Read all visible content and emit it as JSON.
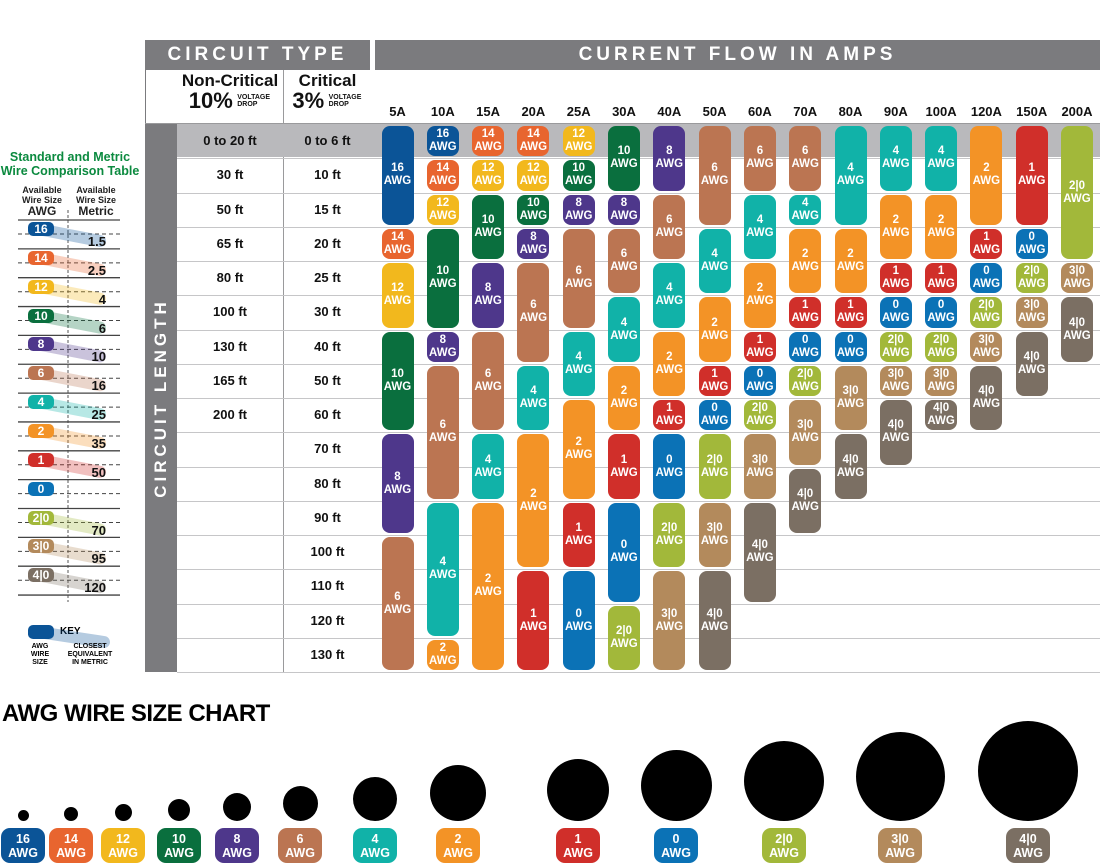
{
  "header": {
    "circuit_type": "CIRCUIT TYPE",
    "current_flow": "CURRENT FLOW IN AMPS",
    "side_label": "CIRCUIT LENGTH"
  },
  "circuit_types": [
    {
      "name": "Non-Critical",
      "pct": "10%",
      "drop": "VOLTAGE DROP"
    },
    {
      "name": "Critical",
      "pct": "3%",
      "drop": "VOLTAGE DROP"
    }
  ],
  "awg_suffix": "AWG",
  "gauge_colors": {
    "16": "#0b5497",
    "14": "#e8652f",
    "12": "#f2b81d",
    "10": "#0a6f3e",
    "8": "#4e378b",
    "6": "#bb7552",
    "4": "#11b2a8",
    "2": "#f39326",
    "1": "#d02f2a",
    "0": "#0b72b6",
    "2|0": "#a2b83a",
    "3|0": "#b38a5c",
    "4|0": "#7b6f63"
  },
  "lengths": [
    {
      "noncritical": "0 to 20 ft",
      "critical": "0 to 6 ft"
    },
    {
      "noncritical": "30 ft",
      "critical": "10 ft"
    },
    {
      "noncritical": "50 ft",
      "critical": "15 ft"
    },
    {
      "noncritical": "65 ft",
      "critical": "20 ft"
    },
    {
      "noncritical": "80 ft",
      "critical": "25 ft"
    },
    {
      "noncritical": "100 ft",
      "critical": "30 ft"
    },
    {
      "noncritical": "130 ft",
      "critical": "40 ft"
    },
    {
      "noncritical": "165 ft",
      "critical": "50 ft"
    },
    {
      "noncritical": "200 ft",
      "critical": "60 ft"
    },
    {
      "noncritical": "",
      "critical": "70 ft"
    },
    {
      "noncritical": "",
      "critical": "80 ft"
    },
    {
      "noncritical": "",
      "critical": "90 ft"
    },
    {
      "noncritical": "",
      "critical": "100 ft"
    },
    {
      "noncritical": "",
      "critical": "110 ft"
    },
    {
      "noncritical": "",
      "critical": "120 ft"
    },
    {
      "noncritical": "",
      "critical": "130 ft"
    }
  ],
  "amps": [
    {
      "label": "5A",
      "segments": [
        [
          "16",
          0,
          2
        ],
        [
          "14",
          3,
          3
        ],
        [
          "12",
          4,
          5
        ],
        [
          "10",
          6,
          8
        ],
        [
          "8",
          9,
          11
        ],
        [
          "6",
          12,
          15
        ]
      ]
    },
    {
      "label": "10A",
      "segments": [
        [
          "16",
          0,
          0
        ],
        [
          "14",
          1,
          1
        ],
        [
          "12",
          2,
          2
        ],
        [
          "10",
          3,
          5
        ],
        [
          "8",
          6,
          6
        ],
        [
          "6",
          7,
          10
        ],
        [
          "4",
          11,
          14
        ],
        [
          "2",
          15,
          15
        ]
      ]
    },
    {
      "label": "15A",
      "segments": [
        [
          "14",
          0,
          0
        ],
        [
          "12",
          1,
          1
        ],
        [
          "10",
          2,
          3
        ],
        [
          "8",
          4,
          5
        ],
        [
          "6",
          6,
          8
        ],
        [
          "4",
          9,
          10
        ],
        [
          "2",
          11,
          15
        ]
      ]
    },
    {
      "label": "20A",
      "segments": [
        [
          "14",
          0,
          0
        ],
        [
          "12",
          1,
          1
        ],
        [
          "10",
          2,
          2
        ],
        [
          "8",
          3,
          3
        ],
        [
          "6",
          4,
          6
        ],
        [
          "4",
          7,
          8
        ],
        [
          "2",
          9,
          12
        ],
        [
          "1",
          13,
          15
        ]
      ]
    },
    {
      "label": "25A",
      "segments": [
        [
          "12",
          0,
          0
        ],
        [
          "10",
          1,
          1
        ],
        [
          "8",
          2,
          2
        ],
        [
          "6",
          3,
          5
        ],
        [
          "4",
          6,
          7
        ],
        [
          "2",
          8,
          10
        ],
        [
          "1",
          11,
          12
        ],
        [
          "0",
          13,
          15
        ]
      ]
    },
    {
      "label": "30A",
      "segments": [
        [
          "10",
          0,
          1
        ],
        [
          "8",
          2,
          2
        ],
        [
          "6",
          3,
          4
        ],
        [
          "4",
          5,
          6
        ],
        [
          "2",
          7,
          8
        ],
        [
          "1",
          9,
          10
        ],
        [
          "0",
          11,
          13
        ],
        [
          "2|0",
          14,
          15
        ]
      ]
    },
    {
      "label": "40A",
      "segments": [
        [
          "8",
          0,
          1
        ],
        [
          "6",
          2,
          3
        ],
        [
          "4",
          4,
          5
        ],
        [
          "2",
          6,
          7
        ],
        [
          "1",
          8,
          8
        ],
        [
          "0",
          9,
          10
        ],
        [
          "2|0",
          11,
          12
        ],
        [
          "3|0",
          13,
          15
        ]
      ]
    },
    {
      "label": "50A",
      "segments": [
        [
          "6",
          0,
          2
        ],
        [
          "4",
          3,
          4
        ],
        [
          "2",
          5,
          6
        ],
        [
          "1",
          7,
          7
        ],
        [
          "0",
          8,
          8
        ],
        [
          "2|0",
          9,
          10
        ],
        [
          "3|0",
          11,
          12
        ],
        [
          "4|0",
          13,
          15
        ]
      ]
    },
    {
      "label": "60A",
      "segments": [
        [
          "6",
          0,
          1
        ],
        [
          "4",
          2,
          3
        ],
        [
          "2",
          4,
          5
        ],
        [
          "1",
          6,
          6
        ],
        [
          "0",
          7,
          7
        ],
        [
          "2|0",
          8,
          8
        ],
        [
          "3|0",
          9,
          10
        ],
        [
          "4|0",
          11,
          13
        ]
      ]
    },
    {
      "label": "70A",
      "segments": [
        [
          "6",
          0,
          1
        ],
        [
          "4",
          2,
          2
        ],
        [
          "2",
          3,
          4
        ],
        [
          "1",
          5,
          5
        ],
        [
          "0",
          6,
          6
        ],
        [
          "2|0",
          7,
          7
        ],
        [
          "3|0",
          8,
          9
        ],
        [
          "4|0",
          10,
          11
        ]
      ]
    },
    {
      "label": "80A",
      "segments": [
        [
          "4",
          0,
          2
        ],
        [
          "2",
          3,
          4
        ],
        [
          "1",
          5,
          5
        ],
        [
          "0",
          6,
          6
        ],
        [
          "3|0",
          7,
          8
        ],
        [
          "4|0",
          9,
          10
        ]
      ]
    },
    {
      "label": "90A",
      "segments": [
        [
          "4",
          0,
          1
        ],
        [
          "2",
          2,
          3
        ],
        [
          "1",
          4,
          4
        ],
        [
          "0",
          5,
          5
        ],
        [
          "2|0",
          6,
          6
        ],
        [
          "3|0",
          7,
          7
        ],
        [
          "4|0",
          8,
          9
        ]
      ]
    },
    {
      "label": "100A",
      "segments": [
        [
          "4",
          0,
          1
        ],
        [
          "2",
          2,
          3
        ],
        [
          "1",
          4,
          4
        ],
        [
          "0",
          5,
          5
        ],
        [
          "2|0",
          6,
          6
        ],
        [
          "3|0",
          7,
          7
        ],
        [
          "4|0",
          8,
          8
        ]
      ]
    },
    {
      "label": "120A",
      "segments": [
        [
          "2",
          0,
          2
        ],
        [
          "1",
          3,
          3
        ],
        [
          "0",
          4,
          4
        ],
        [
          "2|0",
          5,
          5
        ],
        [
          "3|0",
          6,
          6
        ],
        [
          "4|0",
          7,
          8
        ]
      ]
    },
    {
      "label": "150A",
      "segments": [
        [
          "1",
          0,
          2
        ],
        [
          "0",
          3,
          3
        ],
        [
          "2|0",
          4,
          4
        ],
        [
          "3|0",
          5,
          5
        ],
        [
          "4|0",
          6,
          7
        ]
      ]
    },
    {
      "label": "200A",
      "segments": [
        [
          "2|0",
          0,
          3
        ],
        [
          "3|0",
          4,
          4
        ],
        [
          "4|0",
          5,
          6
        ]
      ]
    }
  ],
  "comparison": {
    "title_line1": "Standard and Metric",
    "title_line2": "Wire Comparison Table",
    "col_awg_sub": "Available Wire Size",
    "col_awg": "AWG",
    "col_metric_sub": "Available Wire Size",
    "col_metric": "Metric",
    "rows": [
      {
        "awg": "16",
        "metric": "1.5"
      },
      {
        "awg": "14",
        "metric": "2.5"
      },
      {
        "awg": "12",
        "metric": "4"
      },
      {
        "awg": "10",
        "metric": "6"
      },
      {
        "awg": "8",
        "metric": "10"
      },
      {
        "awg": "6",
        "metric": "16"
      },
      {
        "awg": "4",
        "metric": "25"
      },
      {
        "awg": "2",
        "metric": "35"
      },
      {
        "awg": "1",
        "metric": "50"
      },
      {
        "awg": "0",
        "metric": ""
      },
      {
        "awg": "2|0",
        "metric": "70"
      },
      {
        "awg": "3|0",
        "metric": "95"
      },
      {
        "awg": "4|0",
        "metric": "120"
      }
    ],
    "key": {
      "title": "KEY",
      "left": "AWG WIRE SIZE",
      "right": "CLOSEST EQUIVALENT IN METRIC"
    }
  },
  "size_chart": {
    "title": "AWG WIRE SIZE CHART",
    "gauges": [
      "16",
      "14",
      "12",
      "10",
      "8",
      "6",
      "4",
      "2",
      "1",
      "0",
      "2|0",
      "3|0",
      "4|0"
    ]
  }
}
